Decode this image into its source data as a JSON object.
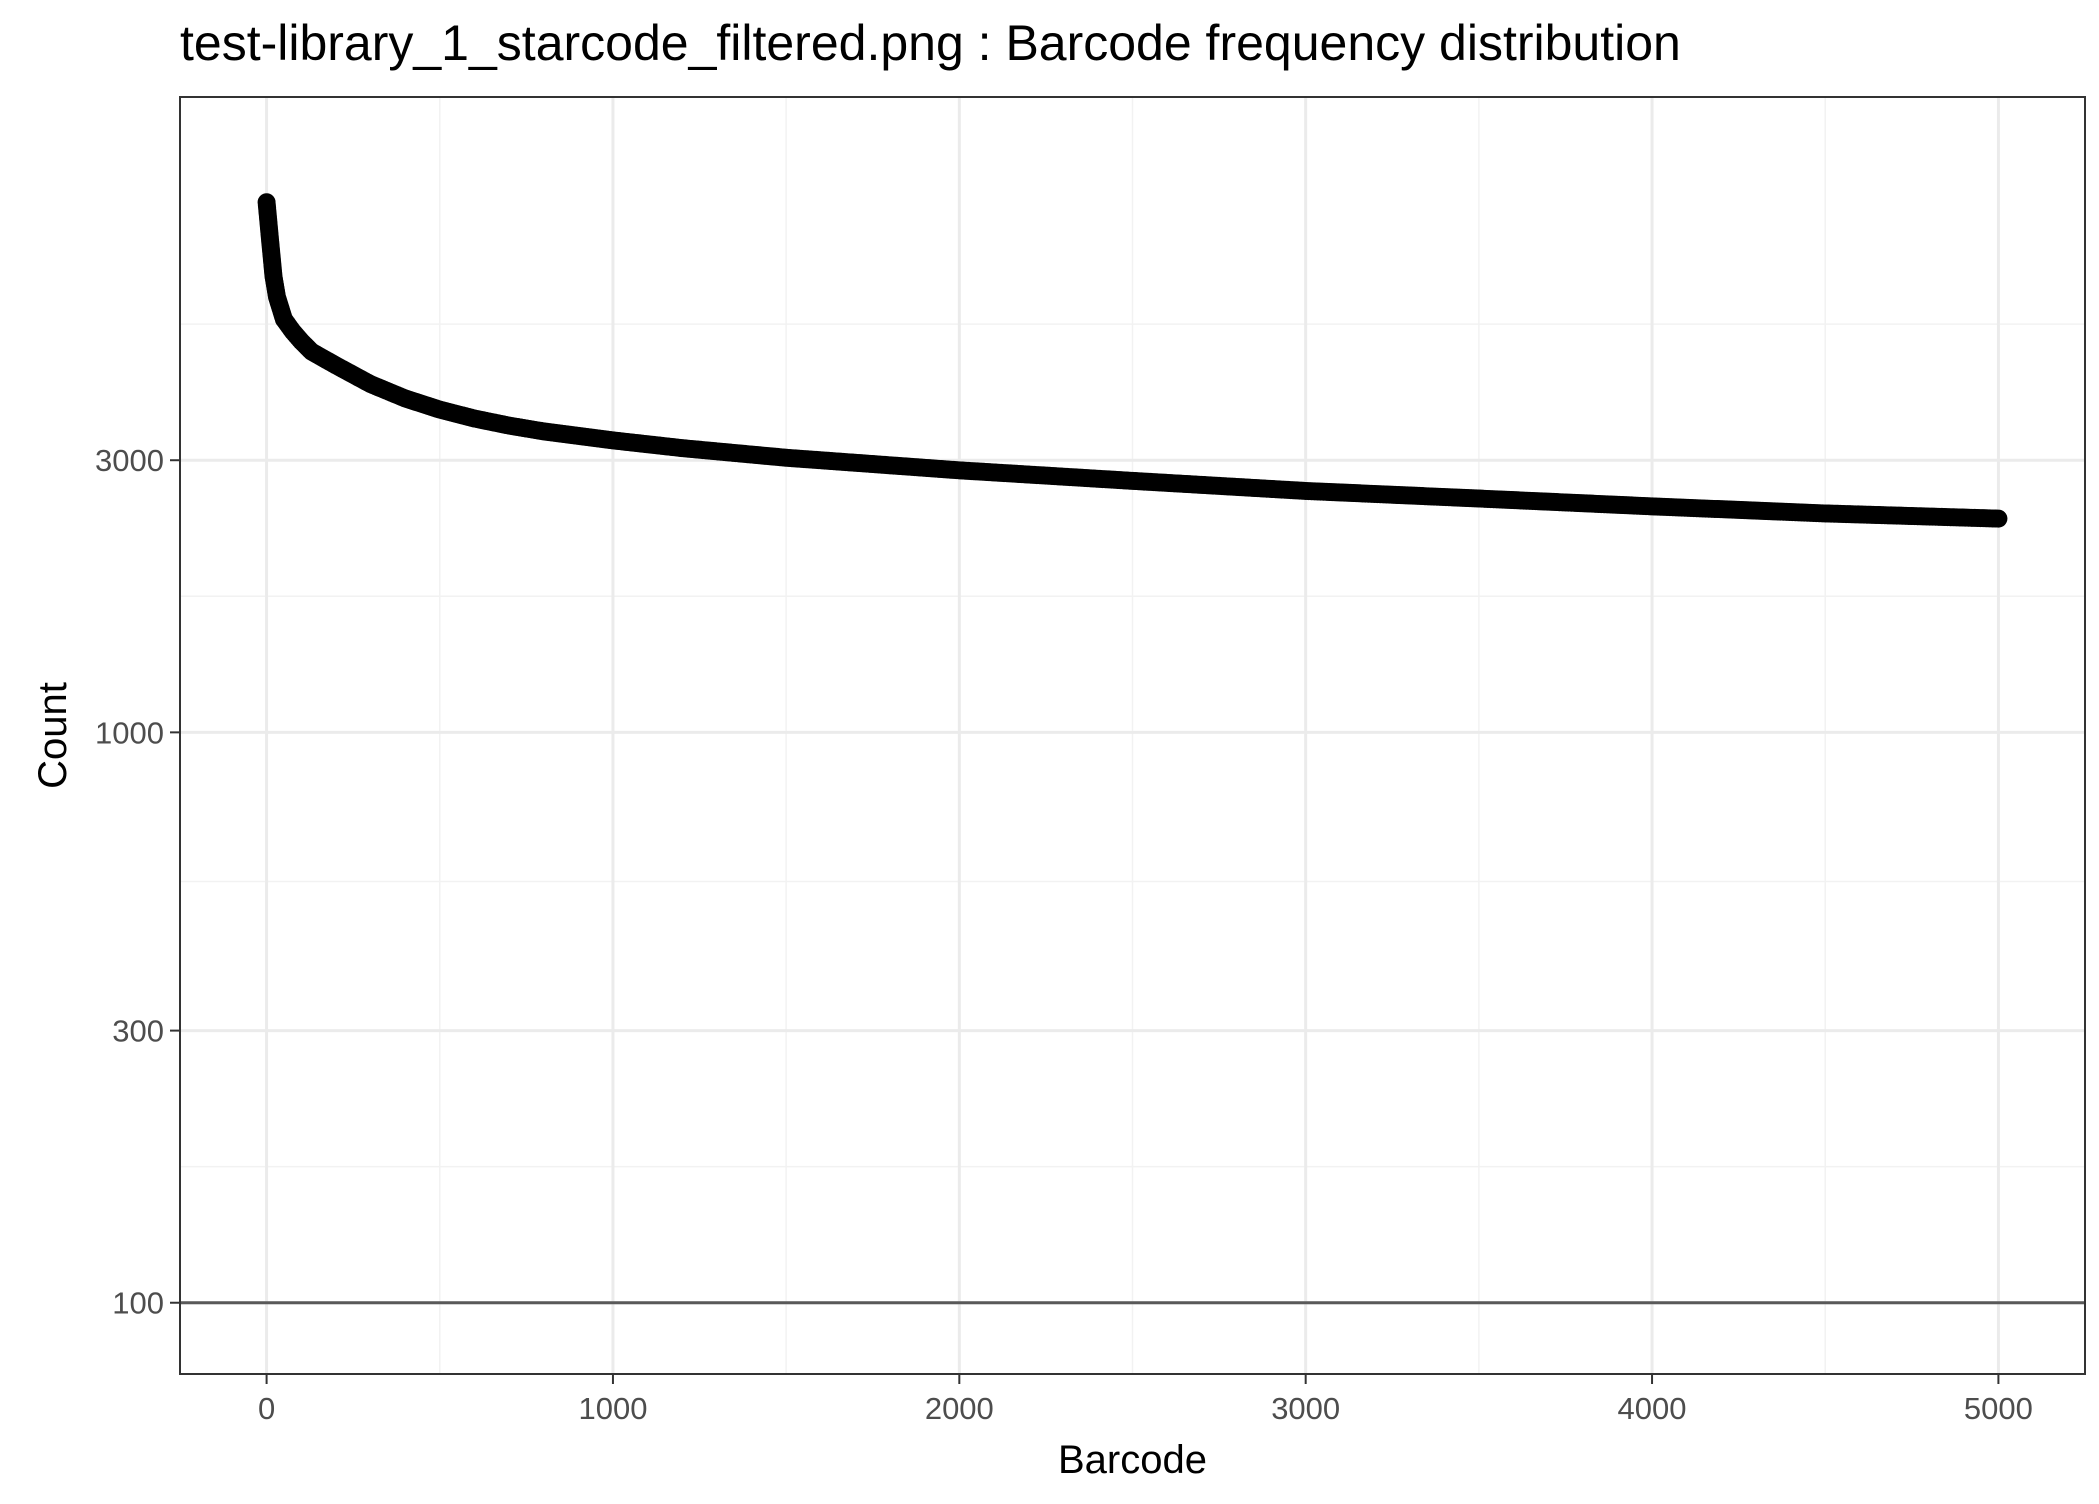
{
  "chart_data": {
    "type": "scatter",
    "title": "test-library_1_starcode_filtered.png : Barcode frequency distribution",
    "xlabel": "Barcode",
    "ylabel": "Count",
    "xlim": [
      -250,
      5250
    ],
    "ylim": [
      75,
      13000
    ],
    "y_scale": "log10",
    "grid": true,
    "x_ticks": [
      {
        "value": 0,
        "label": "0"
      },
      {
        "value": 1000,
        "label": "1000"
      },
      {
        "value": 2000,
        "label": "2000"
      },
      {
        "value": 3000,
        "label": "3000"
      },
      {
        "value": 4000,
        "label": "4000"
      },
      {
        "value": 5000,
        "label": "5000"
      }
    ],
    "y_ticks": [
      {
        "value": 100,
        "label": "100"
      },
      {
        "value": 300,
        "label": "300"
      },
      {
        "value": 1000,
        "label": "1000"
      },
      {
        "value": 3000,
        "label": "3000"
      }
    ],
    "reference_line": {
      "y": 100,
      "color": "#595959"
    },
    "series": [
      {
        "color": "#000000",
        "points": [
          {
            "x": 0,
            "y": 8500
          },
          {
            "x": 10,
            "y": 7300
          },
          {
            "x": 20,
            "y": 6300
          },
          {
            "x": 30,
            "y": 5800
          },
          {
            "x": 50,
            "y": 5300
          },
          {
            "x": 75,
            "y": 5050
          },
          {
            "x": 100,
            "y": 4850
          },
          {
            "x": 130,
            "y": 4650
          },
          {
            "x": 200,
            "y": 4400
          },
          {
            "x": 300,
            "y": 4080
          },
          {
            "x": 400,
            "y": 3850
          },
          {
            "x": 500,
            "y": 3680
          },
          {
            "x": 600,
            "y": 3550
          },
          {
            "x": 700,
            "y": 3450
          },
          {
            "x": 800,
            "y": 3370
          },
          {
            "x": 1000,
            "y": 3250
          },
          {
            "x": 1200,
            "y": 3150
          },
          {
            "x": 1500,
            "y": 3030
          },
          {
            "x": 2000,
            "y": 2880
          },
          {
            "x": 2500,
            "y": 2760
          },
          {
            "x": 3000,
            "y": 2650
          },
          {
            "x": 3500,
            "y": 2570
          },
          {
            "x": 4000,
            "y": 2490
          },
          {
            "x": 4500,
            "y": 2420
          },
          {
            "x": 5000,
            "y": 2370
          }
        ]
      }
    ]
  }
}
